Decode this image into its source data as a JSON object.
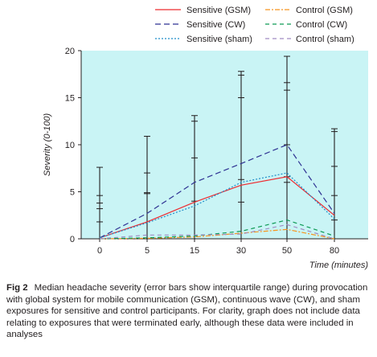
{
  "chart_data": {
    "type": "line",
    "xlabel": "Time (minutes)",
    "ylabel": "Severity (0-100)",
    "categories": [
      "0",
      "5",
      "15",
      "30",
      "50",
      "80"
    ],
    "yticks": [
      0,
      5,
      10,
      15,
      20
    ],
    "ylim": [
      0,
      20
    ],
    "legend_position": "top-right",
    "grid": false,
    "plot_background": "#c9f4f5",
    "series": [
      {
        "name": "Sensitive (GSM)",
        "color": "#ee2a2f",
        "dash": "solid",
        "values": [
          0.1,
          1.8,
          3.9,
          5.7,
          6.6,
          2.5
        ]
      },
      {
        "name": "Sensitive (CW)",
        "color": "#2e3192",
        "dash": "longdash",
        "values": [
          0.1,
          2.7,
          6.0,
          8.0,
          10.0,
          2.7
        ]
      },
      {
        "name": "Sensitive (sham)",
        "color": "#1e8ec9",
        "dash": "dot",
        "values": [
          0.1,
          1.7,
          3.5,
          6.0,
          7.0,
          2.1
        ]
      },
      {
        "name": "Control (GSM)",
        "color": "#f7941d",
        "dash": "dashdot",
        "values": [
          0.0,
          0.05,
          0.2,
          0.6,
          1.0,
          0.0
        ]
      },
      {
        "name": "Control (CW)",
        "color": "#0d9a55",
        "dash": "dash",
        "values": [
          0.0,
          0.1,
          0.3,
          0.8,
          2.0,
          0.3
        ]
      },
      {
        "name": "Control (sham)",
        "color": "#a18bc2",
        "dash": "dash",
        "values": [
          0.0,
          0.4,
          0.4,
          0.5,
          1.5,
          0.0
        ]
      }
    ],
    "error_bars": [
      {
        "x": "0",
        "low": 0,
        "high": 7.6,
        "ticks": [
          0,
          1.8,
          3.2,
          3.8,
          4.6,
          7.6
        ]
      },
      {
        "x": "5",
        "low": 0,
        "high": 10.9,
        "ticks": [
          0,
          4.8,
          4.9,
          7.0,
          10.9
        ]
      },
      {
        "x": "15",
        "low": 0,
        "high": 13.1,
        "ticks": [
          0,
          4.0,
          8.6,
          12.5,
          13.1
        ]
      },
      {
        "x": "30",
        "low": 0,
        "high": 17.8,
        "ticks": [
          0,
          3.9,
          6.3,
          15.0,
          17.4,
          17.8
        ]
      },
      {
        "x": "50",
        "low": 0,
        "high": 19.4,
        "ticks": [
          0,
          6.0,
          6.6,
          10.0,
          15.8,
          16.6,
          19.4
        ]
      },
      {
        "x": "80",
        "low": 0,
        "high": 11.7,
        "ticks": [
          0,
          2.0,
          4.6,
          7.7,
          11.4,
          11.7
        ]
      }
    ]
  },
  "caption": {
    "label": "Fig 2",
    "text": "Median headache severity (error bars show interquartile range) during provocation with global system for mobile communication (GSM), continuous wave (CW), and sham exposures for sensitive and control participants. For clarity, graph does not include data relating to exposures that were terminated early, although these data were included in analyses"
  }
}
